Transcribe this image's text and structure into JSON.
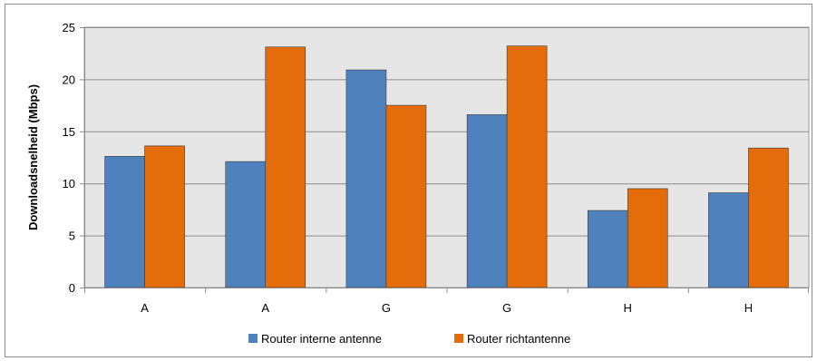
{
  "chart_data": {
    "type": "bar",
    "categories": [
      "A",
      "A",
      "G",
      "G",
      "H",
      "H"
    ],
    "series": [
      {
        "name": "Router interne antenne",
        "color": "#4f81bd",
        "values": [
          12.6,
          12.1,
          20.9,
          16.6,
          7.4,
          9.1
        ]
      },
      {
        "name": "Router richtantenne",
        "color": "#e46c0a",
        "values": [
          13.6,
          23.1,
          17.5,
          23.2,
          9.5,
          13.4
        ]
      }
    ],
    "title": "",
    "xlabel": "",
    "ylabel": "Downloadsnelheid (Mbps)",
    "ylim": [
      0,
      25
    ],
    "yticks": [
      0,
      5,
      10,
      15,
      20,
      25
    ],
    "grid": true,
    "legend_position": "bottom",
    "plot_background": "#e6e6e6"
  }
}
